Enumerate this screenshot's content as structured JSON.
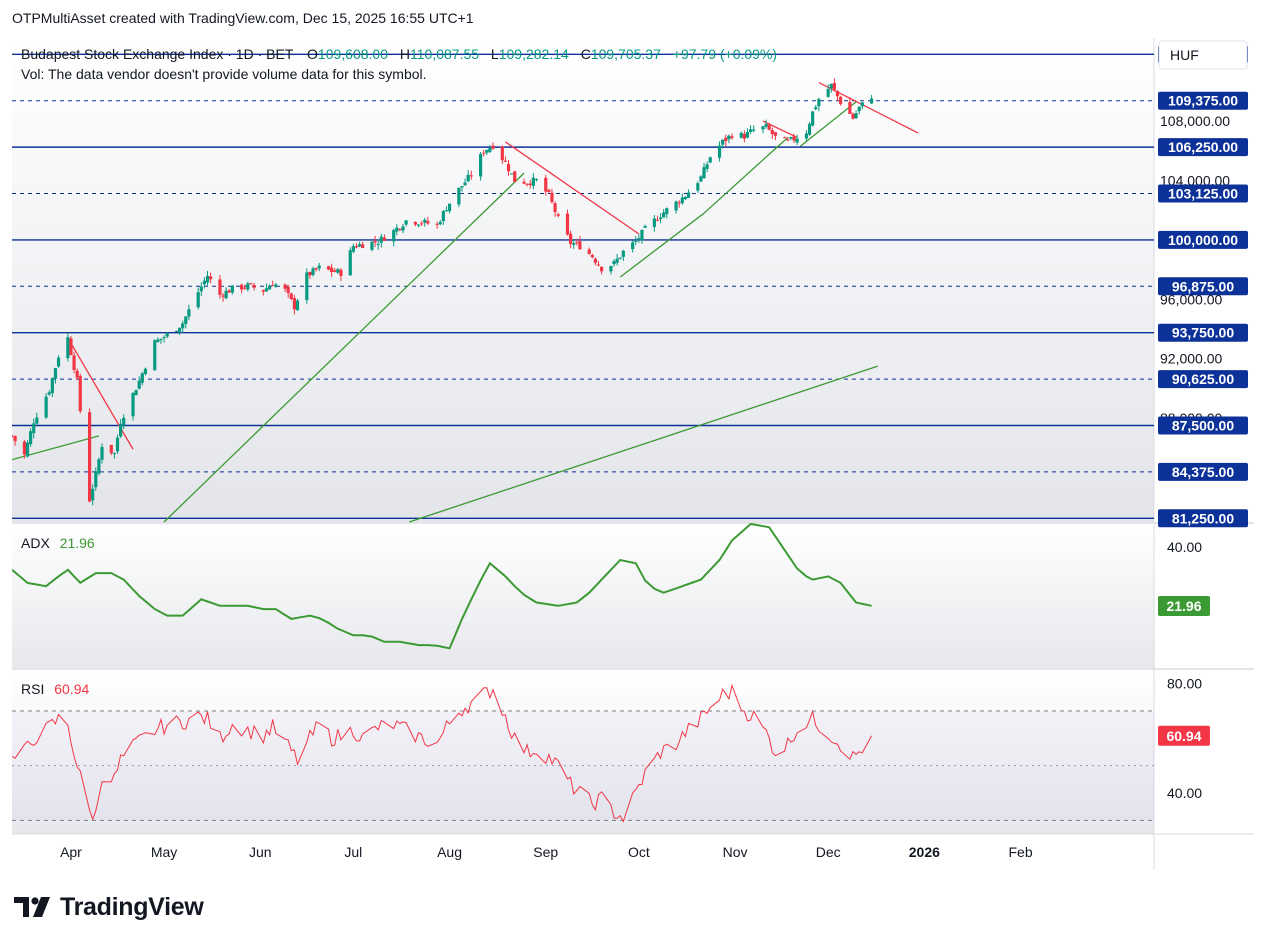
{
  "header": {
    "attribution": "OTPMultiAsset created with TradingView.com, Dec 15, 2025 16:55 UTC+1"
  },
  "brand": {
    "name": "TradingView"
  },
  "colors": {
    "up": "#089981",
    "down": "#f23645",
    "level": "#0c3299",
    "trend_up": "#3c9a34",
    "trend_down": "#f23645",
    "adx": "#3c9a34",
    "rsi": "#f23645"
  },
  "chart_data": {
    "type": "candlestick",
    "symbol_title": "Budapest Stock Exchange Index · 1D · BET",
    "ohlc": {
      "o_label": "O",
      "o": "109,608.00",
      "h_label": "H",
      "h": "110,087.55",
      "l_label": "L",
      "l": "109,282.14",
      "c_label": "C",
      "c": "109,705.37",
      "change": "+97.79 (+0.09%)"
    },
    "volume_note": "Vol: The data vendor doesn't provide volume data for this symbol.",
    "currency": "HUF",
    "x_ticks": [
      {
        "label": "Apr",
        "date": "2025-04-01"
      },
      {
        "label": "May",
        "date": "2025-05-01"
      },
      {
        "label": "Jun",
        "date": "2025-06-01"
      },
      {
        "label": "Jul",
        "date": "2025-07-01"
      },
      {
        "label": "Aug",
        "date": "2025-08-01"
      },
      {
        "label": "Sep",
        "date": "2025-09-01"
      },
      {
        "label": "Oct",
        "date": "2025-10-01"
      },
      {
        "label": "Nov",
        "date": "2025-11-01"
      },
      {
        "label": "Dec",
        "date": "2025-12-01"
      },
      {
        "label": "2026",
        "date": "2026-01-01"
      },
      {
        "label": "Feb",
        "date": "2026-02-01"
      }
    ],
    "x_range": [
      "2025-03-13",
      "2026-03-16"
    ],
    "price_axis": {
      "ylim": [
        81000,
        113600
      ],
      "ticks": [
        {
          "value": 108000,
          "label": "108,000.00"
        },
        {
          "value": 104000,
          "label": "104,000.00"
        },
        {
          "value": 100000,
          "label": "100,000.00"
        },
        {
          "value": 96000,
          "label": "96,000.00"
        },
        {
          "value": 92000,
          "label": "92,000.00"
        },
        {
          "value": 88000,
          "label": "88,000.00"
        }
      ]
    },
    "horizontal_levels": [
      {
        "value": 112500,
        "label": "112,500.00",
        "style": "solid"
      },
      {
        "value": 109375,
        "label": "109,375.00",
        "style": "dashed"
      },
      {
        "value": 106250,
        "label": "106,250.00",
        "style": "solid"
      },
      {
        "value": 103125,
        "label": "103,125.00",
        "style": "dashed"
      },
      {
        "value": 100000,
        "label": "100,000.00",
        "style": "solid"
      },
      {
        "value": 96875,
        "label": "96,875.00",
        "style": "dashed"
      },
      {
        "value": 93750,
        "label": "93,750.00",
        "style": "solid"
      },
      {
        "value": 90625,
        "label": "90,625.00",
        "style": "dashed"
      },
      {
        "value": 87500,
        "label": "87,500.00",
        "style": "solid"
      },
      {
        "value": 84375,
        "label": "84,375.00",
        "style": "dashed"
      },
      {
        "value": 81250,
        "label": "81,250.00",
        "style": "solid"
      },
      {
        "value": 113750,
        "label": "",
        "style": "dashed"
      }
    ],
    "close_anchors": [
      [
        "2025-03-13",
        86800
      ],
      [
        "2025-03-17",
        85500
      ],
      [
        "2025-03-20",
        87800
      ],
      [
        "2025-03-25",
        89900
      ],
      [
        "2025-03-28",
        92200
      ],
      [
        "2025-03-31",
        93400
      ],
      [
        "2025-04-03",
        90500
      ],
      [
        "2025-04-07",
        82500
      ],
      [
        "2025-04-09",
        84200
      ],
      [
        "2025-04-11",
        86200
      ],
      [
        "2025-04-15",
        85600
      ],
      [
        "2025-04-17",
        87800
      ],
      [
        "2025-04-23",
        90500
      ],
      [
        "2025-04-28",
        93100
      ],
      [
        "2025-05-02",
        93600
      ],
      [
        "2025-05-07",
        94400
      ],
      [
        "2025-05-12",
        96500
      ],
      [
        "2025-05-15",
        97600
      ],
      [
        "2025-05-19",
        96300
      ],
      [
        "2025-05-23",
        96700
      ],
      [
        "2025-05-28",
        96900
      ],
      [
        "2025-06-02",
        96600
      ],
      [
        "2025-06-05",
        97100
      ],
      [
        "2025-06-09",
        96600
      ],
      [
        "2025-06-12",
        95500
      ],
      [
        "2025-06-16",
        97600
      ],
      [
        "2025-06-20",
        98100
      ],
      [
        "2025-06-24",
        97900
      ],
      [
        "2025-06-27",
        97800
      ],
      [
        "2025-07-01",
        99600
      ],
      [
        "2025-07-04",
        99700
      ],
      [
        "2025-07-09",
        99900
      ],
      [
        "2025-07-14",
        100600
      ],
      [
        "2025-07-18",
        101300
      ],
      [
        "2025-07-23",
        101200
      ],
      [
        "2025-07-28",
        101000
      ],
      [
        "2025-07-31",
        102200
      ],
      [
        "2025-08-04",
        103400
      ],
      [
        "2025-08-08",
        104400
      ],
      [
        "2025-08-12",
        106000
      ],
      [
        "2025-08-15",
        106400
      ],
      [
        "2025-08-19",
        105200
      ],
      [
        "2025-08-22",
        104000
      ],
      [
        "2025-08-26",
        103900
      ],
      [
        "2025-08-29",
        104000
      ],
      [
        "2025-09-02",
        103000
      ],
      [
        "2025-09-05",
        101400
      ],
      [
        "2025-09-09",
        99800
      ],
      [
        "2025-09-12",
        99600
      ],
      [
        "2025-09-16",
        98900
      ],
      [
        "2025-09-19",
        98100
      ],
      [
        "2025-09-23",
        98400
      ],
      [
        "2025-09-26",
        99200
      ],
      [
        "2025-09-30",
        99900
      ],
      [
        "2025-10-03",
        100700
      ],
      [
        "2025-10-08",
        101700
      ],
      [
        "2025-10-13",
        102500
      ],
      [
        "2025-10-16",
        103000
      ],
      [
        "2025-10-21",
        104200
      ],
      [
        "2025-10-24",
        105600
      ],
      [
        "2025-10-28",
        106600
      ],
      [
        "2025-10-31",
        107100
      ],
      [
        "2025-11-04",
        107000
      ],
      [
        "2025-11-07",
        107400
      ],
      [
        "2025-11-11",
        107600
      ],
      [
        "2025-11-14",
        106900
      ],
      [
        "2025-11-18",
        106600
      ],
      [
        "2025-11-20",
        106800
      ],
      [
        "2025-11-24",
        107300
      ],
      [
        "2025-11-26",
        108600
      ],
      [
        "2025-11-28",
        109500
      ],
      [
        "2025-12-02",
        110400
      ],
      [
        "2025-12-05",
        109300
      ],
      [
        "2025-12-09",
        108200
      ],
      [
        "2025-12-11",
        108900
      ],
      [
        "2025-12-15",
        109705
      ]
    ],
    "trendlines": [
      {
        "kind": "support",
        "from": [
          "2025-03-13",
          85200
        ],
        "to": [
          "2025-04-10",
          86800
        ]
      },
      {
        "kind": "support",
        "from": [
          "2025-05-01",
          81000
        ],
        "to": [
          "2025-08-25",
          104500
        ]
      },
      {
        "kind": "support",
        "from": [
          "2025-07-19",
          81000
        ],
        "to": [
          "2025-12-17",
          91500
        ]
      },
      {
        "kind": "support",
        "from": [
          "2025-09-25",
          97500
        ],
        "to": [
          "2025-10-22",
          101800
        ]
      },
      {
        "kind": "support",
        "from": [
          "2025-10-22",
          101800
        ],
        "to": [
          "2025-11-18",
          106900
        ]
      },
      {
        "kind": "support",
        "from": [
          "2025-11-22",
          106300
        ],
        "to": [
          "2025-12-10",
          109300
        ]
      },
      {
        "kind": "resistance",
        "from": [
          "2025-03-31",
          93400
        ],
        "to": [
          "2025-04-21",
          85900
        ]
      },
      {
        "kind": "resistance",
        "from": [
          "2025-08-19",
          106600
        ],
        "to": [
          "2025-10-01",
          100400
        ]
      },
      {
        "kind": "resistance",
        "from": [
          "2025-11-10",
          108000
        ],
        "to": [
          "2025-11-21",
          106900
        ]
      },
      {
        "kind": "resistance",
        "from": [
          "2025-11-28",
          110600
        ],
        "to": [
          "2025-12-30",
          107200
        ]
      }
    ],
    "adx": {
      "label": "ADX",
      "value": "21.96",
      "ticks": [
        {
          "value": 40,
          "label": "40.00"
        }
      ],
      "ylim": [
        3,
        47
      ],
      "anchors": [
        [
          "2025-03-13",
          33
        ],
        [
          "2025-03-18",
          29
        ],
        [
          "2025-03-24",
          28
        ],
        [
          "2025-03-28",
          31
        ],
        [
          "2025-03-31",
          33
        ],
        [
          "2025-04-04",
          29
        ],
        [
          "2025-04-09",
          32
        ],
        [
          "2025-04-14",
          32
        ],
        [
          "2025-04-18",
          30
        ],
        [
          "2025-04-23",
          25
        ],
        [
          "2025-04-28",
          21
        ],
        [
          "2025-05-02",
          19
        ],
        [
          "2025-05-07",
          19
        ],
        [
          "2025-05-13",
          24
        ],
        [
          "2025-05-19",
          22
        ],
        [
          "2025-05-23",
          22
        ],
        [
          "2025-05-28",
          22
        ],
        [
          "2025-06-02",
          21
        ],
        [
          "2025-06-06",
          21
        ],
        [
          "2025-06-11",
          18
        ],
        [
          "2025-06-17",
          19
        ],
        [
          "2025-06-21",
          18
        ],
        [
          "2025-06-26",
          15
        ],
        [
          "2025-07-01",
          13
        ],
        [
          "2025-07-06",
          13
        ],
        [
          "2025-07-11",
          11
        ],
        [
          "2025-07-16",
          11
        ],
        [
          "2025-07-22",
          10
        ],
        [
          "2025-07-27",
          10
        ],
        [
          "2025-08-01",
          9
        ],
        [
          "2025-08-05",
          18
        ],
        [
          "2025-08-10",
          28
        ],
        [
          "2025-08-14",
          35
        ],
        [
          "2025-08-19",
          31
        ],
        [
          "2025-08-24",
          26
        ],
        [
          "2025-08-29",
          23
        ],
        [
          "2025-09-05",
          22
        ],
        [
          "2025-09-11",
          23
        ],
        [
          "2025-09-15",
          26
        ],
        [
          "2025-09-20",
          31
        ],
        [
          "2025-09-25",
          36
        ],
        [
          "2025-09-30",
          35
        ],
        [
          "2025-10-04",
          28
        ],
        [
          "2025-10-09",
          26
        ],
        [
          "2025-10-15",
          28
        ],
        [
          "2025-10-21",
          30
        ],
        [
          "2025-10-27",
          36
        ],
        [
          "2025-10-31",
          42
        ],
        [
          "2025-11-06",
          47
        ],
        [
          "2025-11-12",
          46
        ],
        [
          "2025-11-17",
          39
        ],
        [
          "2025-11-22",
          32
        ],
        [
          "2025-11-26",
          30
        ],
        [
          "2025-12-01",
          31
        ],
        [
          "2025-12-05",
          29
        ],
        [
          "2025-12-10",
          23
        ],
        [
          "2025-12-15",
          22
        ]
      ]
    },
    "rsi": {
      "label": "RSI",
      "value": "60.94",
      "ticks": [
        {
          "value": 80,
          "label": "80.00"
        },
        {
          "value": 40,
          "label": "40.00"
        }
      ],
      "bands": [
        70,
        30
      ],
      "mid": 50,
      "ylim": [
        25,
        85
      ],
      "anchors": [
        [
          "2025-03-13",
          52
        ],
        [
          "2025-03-17",
          55
        ],
        [
          "2025-03-20",
          60
        ],
        [
          "2025-03-24",
          63
        ],
        [
          "2025-03-28",
          67
        ],
        [
          "2025-03-31",
          65
        ],
        [
          "2025-04-03",
          50
        ],
        [
          "2025-04-07",
          33
        ],
        [
          "2025-04-09",
          32
        ],
        [
          "2025-04-11",
          47
        ],
        [
          "2025-04-15",
          45
        ],
        [
          "2025-04-17",
          52
        ],
        [
          "2025-04-22",
          58
        ],
        [
          "2025-04-28",
          63
        ],
        [
          "2025-05-02",
          65
        ],
        [
          "2025-05-07",
          66
        ],
        [
          "2025-05-12",
          68
        ],
        [
          "2025-05-15",
          67
        ],
        [
          "2025-05-19",
          60
        ],
        [
          "2025-05-23",
          65
        ],
        [
          "2025-05-28",
          63
        ],
        [
          "2025-06-02",
          61
        ],
        [
          "2025-06-05",
          64
        ],
        [
          "2025-06-10",
          57
        ],
        [
          "2025-06-13",
          52
        ],
        [
          "2025-06-17",
          60
        ],
        [
          "2025-06-20",
          65
        ],
        [
          "2025-06-24",
          60
        ],
        [
          "2025-06-27",
          61
        ],
        [
          "2025-07-01",
          63
        ],
        [
          "2025-07-04",
          60
        ],
        [
          "2025-07-09",
          64
        ],
        [
          "2025-07-14",
          65
        ],
        [
          "2025-07-18",
          63
        ],
        [
          "2025-07-23",
          60
        ],
        [
          "2025-07-28",
          58
        ],
        [
          "2025-07-31",
          64
        ],
        [
          "2025-08-04",
          70
        ],
        [
          "2025-08-08",
          73
        ],
        [
          "2025-08-12",
          76
        ],
        [
          "2025-08-15",
          78
        ],
        [
          "2025-08-19",
          68
        ],
        [
          "2025-08-22",
          60
        ],
        [
          "2025-08-26",
          55
        ],
        [
          "2025-08-29",
          56
        ],
        [
          "2025-09-02",
          53
        ],
        [
          "2025-09-05",
          50
        ],
        [
          "2025-09-09",
          43
        ],
        [
          "2025-09-12",
          40
        ],
        [
          "2025-09-16",
          36
        ],
        [
          "2025-09-19",
          38
        ],
        [
          "2025-09-23",
          33
        ],
        [
          "2025-09-26",
          31
        ],
        [
          "2025-09-30",
          40
        ],
        [
          "2025-10-03",
          47
        ],
        [
          "2025-10-08",
          55
        ],
        [
          "2025-10-13",
          58
        ],
        [
          "2025-10-16",
          62
        ],
        [
          "2025-10-21",
          67
        ],
        [
          "2025-10-24",
          71
        ],
        [
          "2025-10-28",
          76
        ],
        [
          "2025-10-31",
          77
        ],
        [
          "2025-11-04",
          70
        ],
        [
          "2025-11-07",
          68
        ],
        [
          "2025-11-11",
          62
        ],
        [
          "2025-11-14",
          55
        ],
        [
          "2025-11-18",
          58
        ],
        [
          "2025-11-20",
          62
        ],
        [
          "2025-11-24",
          66
        ],
        [
          "2025-11-26",
          67
        ],
        [
          "2025-11-28",
          65
        ],
        [
          "2025-12-02",
          61
        ],
        [
          "2025-12-05",
          58
        ],
        [
          "2025-12-09",
          53
        ],
        [
          "2025-12-11",
          55
        ],
        [
          "2025-12-15",
          60.94
        ]
      ]
    }
  }
}
